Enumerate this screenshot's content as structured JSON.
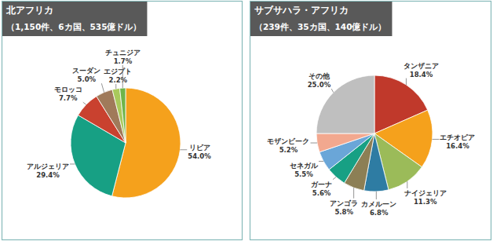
{
  "chart_data": [
    {
      "type": "pie",
      "title": "北アフリカ",
      "subtitle": "（1,150件、6カ国、535億ドル）",
      "categories": [
        "リビア",
        "アルジェリア",
        "モロッコ",
        "スーダン",
        "エジプト",
        "チュニジア"
      ],
      "values": [
        54.0,
        29.4,
        7.7,
        5.0,
        2.2,
        1.7
      ],
      "value_labels": [
        "54.0%",
        "29.4%",
        "7.7%",
        "5.0%",
        "2.2%",
        "1.7%"
      ],
      "colors": [
        "#f5a11c",
        "#17a084",
        "#c9412f",
        "#a07a5a",
        "#a9c95b",
        "#6fb54a"
      ],
      "data_labels": true
    },
    {
      "type": "pie",
      "title": "サブサハラ・アフリカ",
      "subtitle": "（239件、35カ国、140億ドル）",
      "categories": [
        "タンザニア",
        "エチオピア",
        "ナイジェリア",
        "カメルーン",
        "アンゴラ",
        "ガーナ",
        "セネガル",
        "モザンビーク",
        "その他"
      ],
      "values": [
        18.4,
        16.4,
        11.3,
        6.8,
        5.8,
        5.6,
        5.5,
        5.2,
        25.0
      ],
      "value_labels": [
        "18.4%",
        "16.4%",
        "11.3%",
        "6.8%",
        "5.8%",
        "5.6%",
        "5.5%",
        "5.2%",
        "25.0%"
      ],
      "colors": [
        "#c0392b",
        "#f5a11c",
        "#9bbb59",
        "#2e7ca3",
        "#8c7f55",
        "#17a084",
        "#6aa6d8",
        "#f2a88f",
        "#bfbfbf"
      ],
      "data_labels": true
    }
  ]
}
